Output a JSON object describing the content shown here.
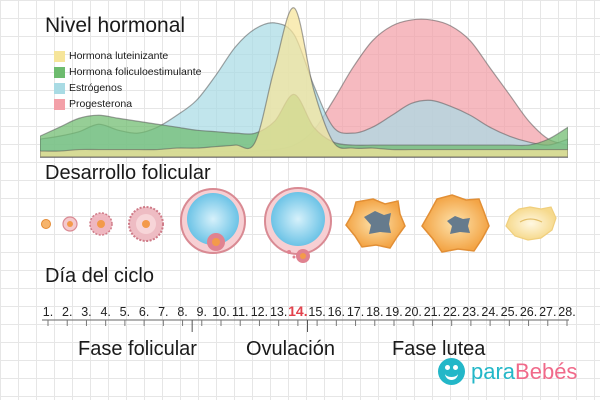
{
  "titles": {
    "hormones": "Nivel hormonal",
    "follicles": "Desarrollo folicular",
    "cycle": "Día del ciclo"
  },
  "legend": [
    {
      "label": "Hormona luteinizante",
      "color": "#f6e59a"
    },
    {
      "label": "Hormona foliculoestimulante",
      "color": "#6dbb6e"
    },
    {
      "label": "Estrógenos",
      "color": "#a9dbe4"
    },
    {
      "label": "Progesterona",
      "color": "#f3a0a8"
    }
  ],
  "chart_data": {
    "type": "area",
    "x": [
      1,
      2,
      3,
      4,
      5,
      6,
      7,
      8,
      9,
      10,
      11,
      12,
      13,
      14,
      15,
      16,
      17,
      18,
      19,
      20,
      21,
      22,
      23,
      24,
      25,
      26,
      27,
      28
    ],
    "ylim": [
      0,
      100
    ],
    "series": [
      {
        "name": "Progesterona",
        "color": "#f3a0a8",
        "values": [
          4,
          4,
          4,
          4,
          4,
          4,
          4,
          4,
          4,
          4,
          4,
          4,
          5,
          8,
          18,
          38,
          60,
          78,
          88,
          92,
          92,
          88,
          78,
          60,
          42,
          24,
          12,
          8
        ]
      },
      {
        "name": "Estrógenos",
        "color": "#a9dbe4",
        "values": [
          12,
          14,
          17,
          22,
          18,
          16,
          20,
          28,
          38,
          55,
          74,
          86,
          90,
          82,
          48,
          20,
          16,
          20,
          28,
          36,
          38,
          34,
          28,
          20,
          14,
          10,
          8,
          12
        ]
      },
      {
        "name": "Hormona foliculoestimulante",
        "color": "#6dbb6e",
        "values": [
          14,
          20,
          26,
          28,
          26,
          24,
          22,
          20,
          18,
          17,
          16,
          16,
          24,
          42,
          20,
          10,
          8,
          8,
          8,
          8,
          8,
          8,
          8,
          8,
          8,
          8,
          12,
          20
        ]
      },
      {
        "name": "Hormona luteinizante",
        "color": "#f6e59a",
        "values": [
          4,
          4,
          5,
          5,
          5,
          5,
          5,
          6,
          6,
          7,
          8,
          10,
          60,
          100,
          45,
          10,
          6,
          6,
          5,
          5,
          5,
          5,
          5,
          5,
          5,
          5,
          5,
          5
        ]
      }
    ]
  },
  "days": [
    "1.",
    "2.",
    "3.",
    "4.",
    "5.",
    "6.",
    "7.",
    "8.",
    "9.",
    "10.",
    "11.",
    "12.",
    "13.",
    "14.",
    "15.",
    "16.",
    "17.",
    "18.",
    "19.",
    "20.",
    "21.",
    "22.",
    "23.",
    "24.",
    "25.",
    "26.",
    "27.",
    "28."
  ],
  "highlight_day": "14.",
  "phases": {
    "follicular": "Fase folicular",
    "ovulation": "Ovulación",
    "luteal": "Fase lutea"
  },
  "brand": {
    "part1": "para",
    "part2": "Bebés"
  }
}
